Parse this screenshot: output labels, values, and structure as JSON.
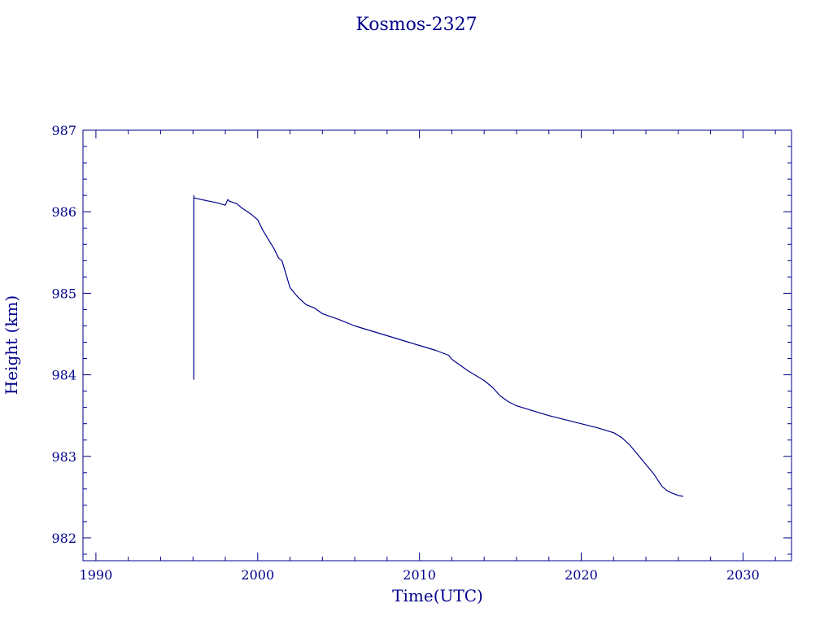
{
  "chart_data": {
    "type": "line",
    "title": "Kosmos-2327",
    "xlabel": "Time(UTC)",
    "ylabel": "Height (km)",
    "xlim": [
      1989.2,
      2033
    ],
    "ylim": [
      981.72,
      987
    ],
    "xticks": [
      1990,
      2000,
      2010,
      2020,
      2030
    ],
    "yticks": [
      982,
      983,
      984,
      985,
      986,
      987
    ],
    "grid": false,
    "color": "#00008b",
    "series": [
      {
        "x": [
          1996.05,
          1996.05,
          1996.05,
          1996.08,
          1996.5,
          1997.0,
          1997.5,
          1998.0,
          1998.15,
          1998.25,
          1998.4,
          1998.7,
          1999.0,
          1999.3,
          1999.6,
          2000.0,
          2000.3,
          2000.6,
          2001.0,
          2001.3,
          2001.5,
          2001.8,
          2002.0,
          2002.2,
          2002.5,
          2003.0,
          2003.5,
          2004.0,
          2005.0,
          2006.0,
          2007.0,
          2008.0,
          2009.0,
          2010.0,
          2011.0,
          2011.8,
          2012.0,
          2012.5,
          2013.0,
          2014.0,
          2014.5,
          2015.0,
          2015.5,
          2016.0,
          2017.0,
          2018.0,
          2019.0,
          2020.0,
          2021.0,
          2022.0,
          2022.5,
          2023.0,
          2023.5,
          2024.0,
          2024.5,
          2024.8,
          2025.0,
          2025.3,
          2025.6,
          2026.0,
          2026.3
        ],
        "y": [
          983.94,
          986.2,
          986.17,
          986.17,
          986.15,
          986.13,
          986.11,
          986.08,
          986.15,
          986.13,
          986.12,
          986.1,
          986.05,
          986.01,
          985.97,
          985.9,
          985.78,
          985.68,
          985.55,
          985.43,
          985.4,
          985.2,
          985.07,
          985.02,
          984.95,
          984.86,
          984.82,
          984.75,
          984.68,
          984.6,
          984.54,
          984.48,
          984.42,
          984.36,
          984.3,
          984.24,
          984.19,
          984.12,
          984.05,
          983.93,
          983.85,
          983.74,
          983.67,
          983.62,
          983.56,
          983.5,
          983.45,
          983.4,
          983.35,
          983.29,
          983.23,
          983.14,
          983.02,
          982.9,
          982.78,
          982.69,
          982.63,
          982.58,
          982.55,
          982.52,
          982.51
        ]
      }
    ]
  }
}
